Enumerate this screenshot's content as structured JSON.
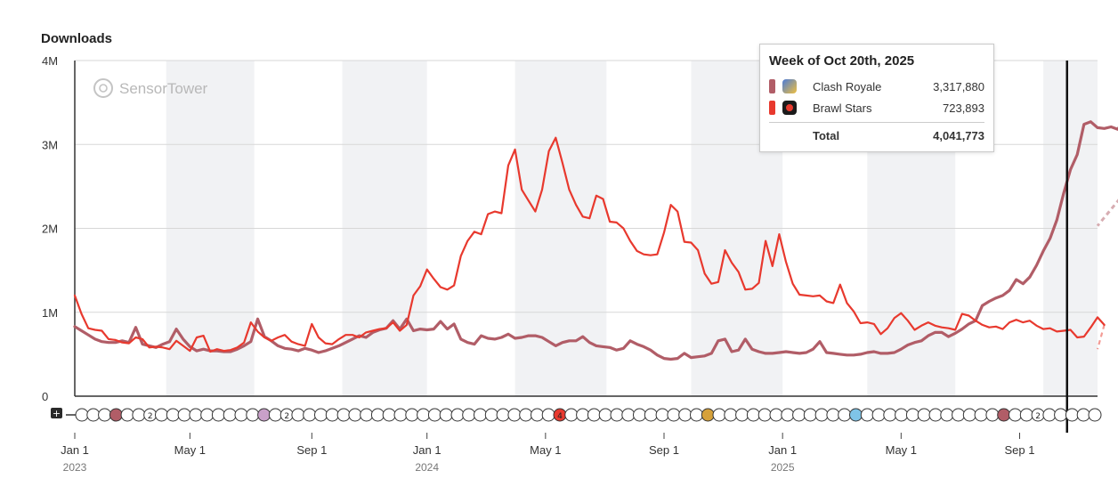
{
  "chart_data": {
    "type": "line",
    "title": "Downloads",
    "watermark": "SensorTower",
    "ylim": [
      0,
      4000000
    ],
    "yticks": [
      {
        "value": 0,
        "label": "0"
      },
      {
        "value": 1000000,
        "label": "1M"
      },
      {
        "value": 2000000,
        "label": "2M"
      },
      {
        "value": 3000000,
        "label": "3M"
      },
      {
        "value": 4000000,
        "label": "4M"
      }
    ],
    "x_range_weeks": [
      0,
      151
    ],
    "x_unit": "weeks since Jan 1, 2023",
    "xticks": [
      {
        "week": 0,
        "label": "Jan 1",
        "year": "2023"
      },
      {
        "week": 17,
        "label": "May 1",
        "year": ""
      },
      {
        "week": 35,
        "label": "Sep 1",
        "year": ""
      },
      {
        "week": 52,
        "label": "Jan 1",
        "year": "2024"
      },
      {
        "week": 69.5,
        "label": "May 1",
        "year": ""
      },
      {
        "week": 87,
        "label": "Sep 1",
        "year": ""
      },
      {
        "week": 104.5,
        "label": "Jan 1",
        "year": "2025"
      },
      {
        "week": 122,
        "label": "May 1",
        "year": ""
      },
      {
        "week": 139.5,
        "label": "Sep 1",
        "year": ""
      }
    ],
    "shaded_month_bands_weeks": [
      [
        13.5,
        26.5
      ],
      [
        39.5,
        52
      ],
      [
        65,
        78.5
      ],
      [
        91,
        104.5
      ],
      [
        117,
        130
      ],
      [
        143,
        151
      ]
    ],
    "series": [
      {
        "name": "Clash Royale",
        "color": "#b15d67",
        "values": [
          830,
          780,
          730,
          680,
          650,
          640,
          640,
          660,
          640,
          820,
          620,
          600,
          580,
          620,
          650,
          800,
          680,
          590,
          540,
          560,
          540,
          540,
          530,
          530,
          560,
          600,
          650,
          920,
          710,
          660,
          600,
          570,
          560,
          540,
          570,
          550,
          520,
          540,
          570,
          600,
          640,
          680,
          720,
          700,
          760,
          790,
          810,
          900,
          800,
          920,
          780,
          800,
          790,
          800,
          890,
          800,
          860,
          680,
          640,
          620,
          720,
          690,
          680,
          700,
          740,
          690,
          700,
          720,
          720,
          700,
          650,
          600,
          640,
          660,
          660,
          710,
          640,
          600,
          590,
          580,
          550,
          570,
          660,
          620,
          590,
          550,
          490,
          450,
          440,
          450,
          510,
          460,
          470,
          480,
          510,
          660,
          680,
          530,
          550,
          680,
          560,
          530,
          510,
          510,
          520,
          530,
          520,
          510,
          520,
          560,
          650,
          520,
          510,
          500,
          490,
          490,
          500,
          520,
          530,
          510,
          510,
          520,
          560,
          610,
          640,
          660,
          720,
          760,
          760,
          710,
          750,
          800,
          860,
          900,
          1080,
          1130,
          1170,
          1200,
          1260,
          1390,
          1340,
          1420,
          1560,
          1730,
          1880,
          2100,
          2420,
          2700,
          2880,
          3240,
          3270,
          3200,
          3190,
          3210,
          3180,
          3310,
          3070,
          2920,
          2720
        ],
        "projected": [
          2720,
          2030
        ]
      },
      {
        "name": "Brawl Stars",
        "color": "#e8392e",
        "values": [
          1200,
          980,
          810,
          790,
          780,
          680,
          670,
          640,
          630,
          700,
          680,
          580,
          590,
          580,
          560,
          660,
          600,
          540,
          700,
          720,
          530,
          560,
          540,
          550,
          580,
          640,
          880,
          770,
          700,
          660,
          700,
          730,
          650,
          620,
          600,
          860,
          700,
          630,
          620,
          680,
          730,
          730,
          700,
          760,
          780,
          800,
          810,
          880,
          780,
          850,
          1200,
          1310,
          1510,
          1400,
          1300,
          1270,
          1320,
          1670,
          1850,
          1960,
          1930,
          2170,
          2200,
          2180,
          2750,
          2940,
          2460,
          2330,
          2200,
          2460,
          2920,
          3080,
          2780,
          2460,
          2280,
          2140,
          2120,
          2390,
          2350,
          2080,
          2070,
          2000,
          1850,
          1730,
          1690,
          1680,
          1690,
          1950,
          2280,
          2200,
          1840,
          1830,
          1740,
          1460,
          1340,
          1360,
          1740,
          1590,
          1480,
          1270,
          1280,
          1350,
          1850,
          1550,
          1930,
          1600,
          1340,
          1210,
          1200,
          1190,
          1200,
          1130,
          1110,
          1330,
          1110,
          1010,
          870,
          880,
          860,
          740,
          810,
          930,
          990,
          900,
          790,
          840,
          880,
          840,
          820,
          810,
          790,
          980,
          960,
          900,
          850,
          820,
          830,
          800,
          880,
          910,
          880,
          900,
          840,
          800,
          810,
          770,
          780,
          790,
          700,
          710,
          820,
          940,
          850
        ],
        "projected": [
          850,
          560
        ]
      }
    ],
    "hover_week": 146.5,
    "tooltip": {
      "title": "Week of Oct 20th, 2025",
      "rows": [
        {
          "name": "Clash Royale",
          "value": "3,317,880",
          "color": "#b15d67"
        },
        {
          "name": "Brawl Stars",
          "value": "723,893",
          "color": "#e8392e"
        }
      ],
      "total_label": "Total",
      "total_value": "4,041,773"
    },
    "update_markers": [
      "(",
      "(",
      "(",
      "(",
      "(",
      "(",
      "2",
      "(",
      "(",
      "(",
      "(",
      "4",
      "(",
      "4",
      "(",
      "2",
      "4",
      "(",
      "2",
      "5",
      "(",
      "5",
      "(",
      "5",
      "(",
      "4"
    ]
  }
}
